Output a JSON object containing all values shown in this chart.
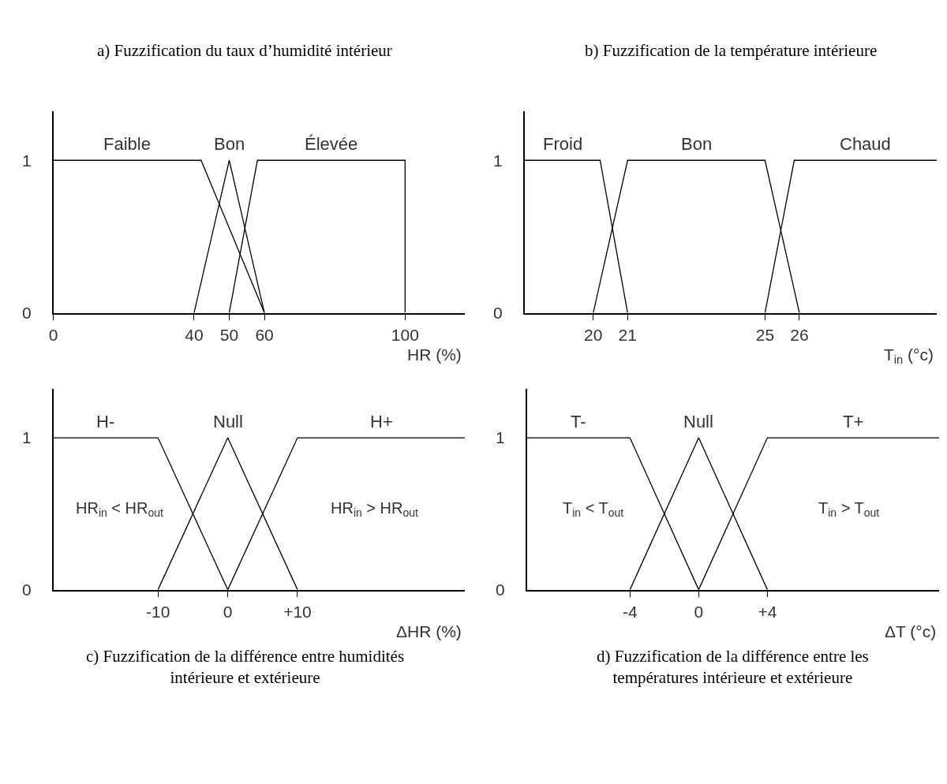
{
  "chart_data": [
    {
      "type": "line",
      "title": "a) Fuzzification du taux d’humidité intérieur",
      "xlabel": "HR (%)",
      "xlim": [
        0,
        117
      ],
      "xticks": [
        0,
        40,
        50,
        60,
        100
      ],
      "ylim": [
        0,
        1.32
      ],
      "yticks": [
        0,
        1
      ],
      "legend": false,
      "marker": "none",
      "line_style": "solid",
      "series": [
        {
          "name": "Faible",
          "color": "#000000",
          "x": [
            0,
            42,
            60
          ],
          "values": [
            1,
            1,
            0
          ]
        },
        {
          "name": "Bon",
          "color": "#000000",
          "x": [
            40,
            50,
            60
          ],
          "values": [
            0,
            1,
            0
          ]
        },
        {
          "name": "Élevée",
          "color": "#000000",
          "x": [
            50,
            58,
            100,
            100
          ],
          "values": [
            0,
            1,
            1,
            0
          ]
        }
      ]
    },
    {
      "type": "line",
      "title": "b) Fuzzification de la température intérieure",
      "xlabel": "T$_{in}$ (°c)",
      "xlim": [
        18,
        30
      ],
      "xticks": [
        20,
        21,
        25,
        26
      ],
      "ylim": [
        0,
        1.32
      ],
      "yticks": [
        0,
        1
      ],
      "legend": false,
      "marker": "none",
      "line_style": "solid",
      "series": [
        {
          "name": "Froid",
          "color": "#000000",
          "x": [
            18,
            20.2,
            21
          ],
          "values": [
            1,
            1,
            0
          ]
        },
        {
          "name": "Bon",
          "color": "#000000",
          "x": [
            20,
            21,
            25,
            26
          ],
          "values": [
            0,
            1,
            1,
            0
          ]
        },
        {
          "name": "Chaud",
          "color": "#000000",
          "x": [
            25,
            25.85,
            30
          ],
          "values": [
            0,
            1,
            1
          ]
        }
      ]
    },
    {
      "type": "line",
      "title": "c) Fuzzification de la différence entre humidités intérieure et extérieure",
      "xlabel": "ΔHR (%)",
      "xlim": [
        -25,
        34
      ],
      "xticks": [
        -10,
        0,
        {
          "value": 10,
          "label": "+10"
        }
      ],
      "ylim": [
        0,
        1.32
      ],
      "yticks": [
        0,
        1
      ],
      "legend": false,
      "marker": "none",
      "line_style": "solid",
      "annotations": [
        "HR$_{in}$ < HR$_{out}$",
        "HR$_{in}$ > HR$_{out}$"
      ],
      "series": [
        {
          "name": "H-",
          "color": "#000000",
          "x": [
            -25,
            -10,
            0
          ],
          "values": [
            1,
            1,
            0
          ]
        },
        {
          "name": "Null",
          "color": "#000000",
          "x": [
            -10,
            0,
            10
          ],
          "values": [
            0,
            1,
            0
          ]
        },
        {
          "name": "H+",
          "color": "#000000",
          "x": [
            0,
            10,
            34
          ],
          "values": [
            0,
            1,
            1
          ]
        }
      ]
    },
    {
      "type": "line",
      "title": "d) Fuzzification de la différence entre les températures intérieure et extérieure",
      "xlabel": "ΔT (°c)",
      "xlim": [
        -10,
        14
      ],
      "xticks": [
        -4,
        0,
        {
          "value": 4,
          "label": "+4"
        }
      ],
      "ylim": [
        0,
        1.32
      ],
      "yticks": [
        0,
        1
      ],
      "legend": false,
      "marker": "none",
      "line_style": "solid",
      "annotations": [
        "T$_{in}$ < T$_{out}$",
        "T$_{in}$ > T$_{out}$"
      ],
      "series": [
        {
          "name": "T-",
          "color": "#000000",
          "x": [
            -10,
            -4,
            0
          ],
          "values": [
            1,
            1,
            0
          ]
        },
        {
          "name": "Null",
          "color": "#000000",
          "x": [
            -4,
            0,
            4
          ],
          "values": [
            0,
            1,
            0
          ]
        },
        {
          "name": "T+",
          "color": "#000000",
          "x": [
            0,
            4,
            14
          ],
          "values": [
            0,
            1,
            1
          ]
        }
      ]
    }
  ]
}
